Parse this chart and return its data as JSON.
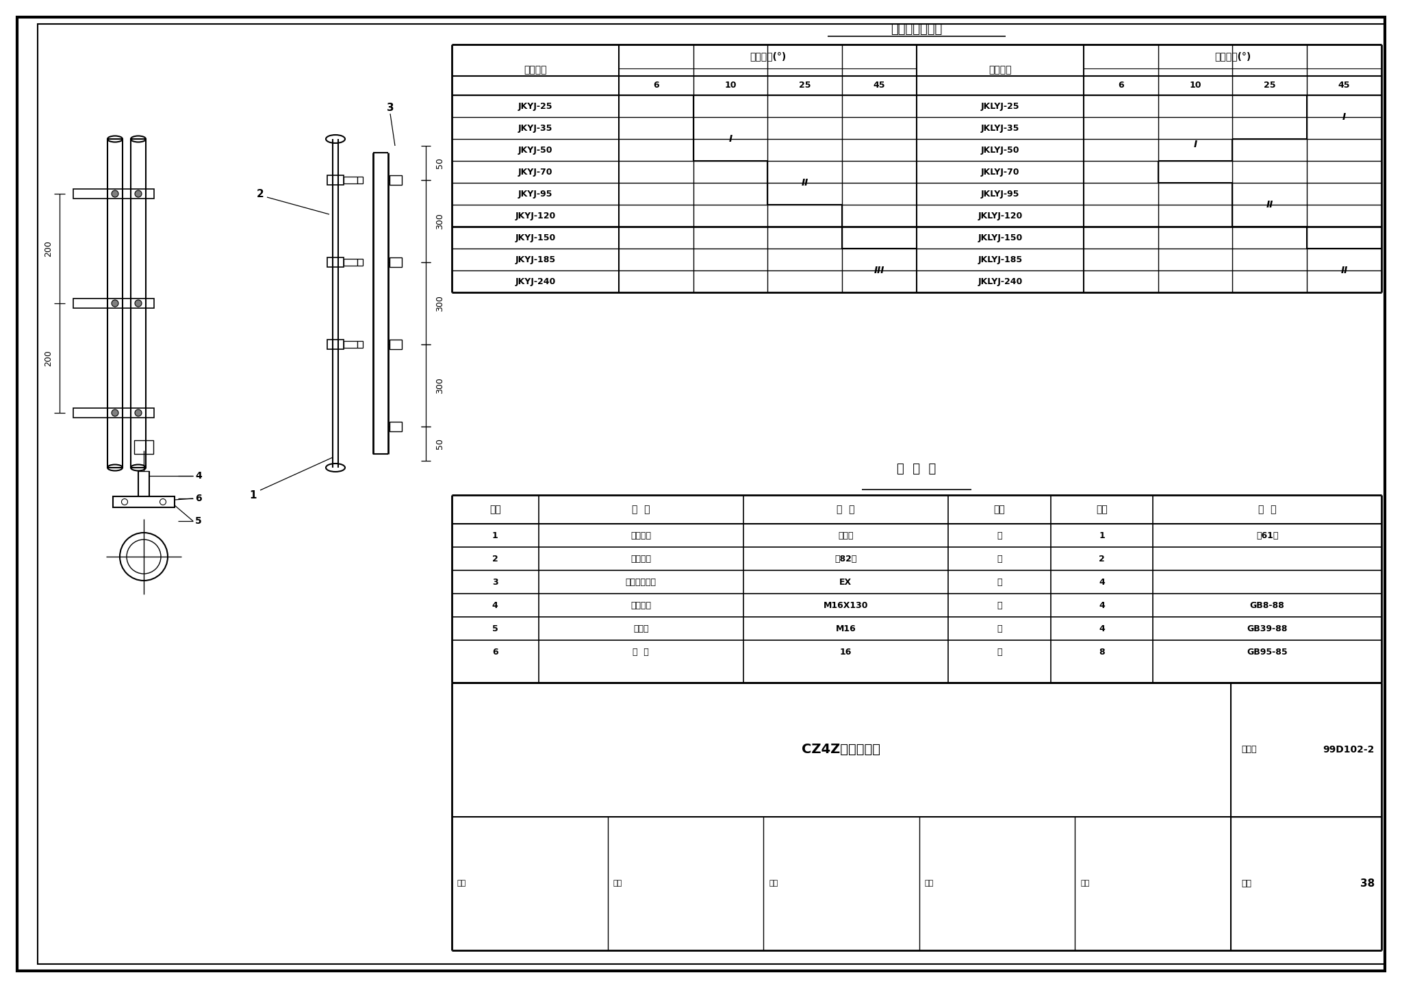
{
  "bg_color": "#ffffff",
  "border_color": "#000000",
  "title1": "槽钢横担选择表",
  "title2": "明  细  表",
  "table1_header_col1": "导线规格",
  "table1_header_col2": "线路转角(°)",
  "table1_header_col3": "导线规格",
  "table1_header_col4": "线路转角(°)",
  "table1_sub_headers_left": [
    "6",
    "10",
    "25",
    "45"
  ],
  "table1_sub_headers_right": [
    "6",
    "10",
    "25",
    "45"
  ],
  "table1_rows_left": [
    "JKYJ-25",
    "JKYJ-35",
    "JKYJ-50",
    "JKYJ-70",
    "JKYJ-95",
    "JKYJ-120",
    "JKYJ-150",
    "JKYJ-185",
    "JKYJ-240"
  ],
  "table1_rows_right": [
    "JKLYJ-25",
    "JKLYJ-35",
    "JKLYJ-50",
    "JKLYJ-70",
    "JKLYJ-95",
    "JKLYJ-120",
    "JKLYJ-150",
    "JKLYJ-185",
    "JKLYJ-240"
  ],
  "table2_headers": [
    "序号",
    "名  称",
    "规  格",
    "单位",
    "数量",
    "附  注"
  ],
  "table2_col_widths": [
    55,
    130,
    130,
    65,
    65,
    145
  ],
  "table2_rows": [
    [
      "1",
      "槽钢横担",
      "见上表",
      "根",
      "1",
      "见61页"
    ],
    [
      "2",
      "槽钢抱箍",
      "见82页",
      "付",
      "2",
      ""
    ],
    [
      "3",
      "线轴式绝缘子",
      "EX",
      "个",
      "4",
      ""
    ],
    [
      "4",
      "方头螺栓",
      "M16X130",
      "个",
      "4",
      "GB8-88"
    ],
    [
      "5",
      "方螺母",
      "M16",
      "个",
      "4",
      "GB39-88"
    ],
    [
      "6",
      "垫  圈",
      "16",
      "个",
      "8",
      "GB95-85"
    ]
  ],
  "bottom_title": "CZ4Z横担组装图",
  "drawing_number": "99D102-2",
  "page_label": "图集号",
  "page_num_label": "页号",
  "page_num": "38",
  "review_labels": [
    "审核",
    "校对",
    "设计",
    "制图",
    "页号"
  ],
  "dim_200_label": "200",
  "dim_50_label": "50",
  "dim_300_label": "300",
  "label1": "1",
  "label2": "2",
  "label3": "3",
  "label5": "5",
  "label6": "6",
  "label4b": "4"
}
